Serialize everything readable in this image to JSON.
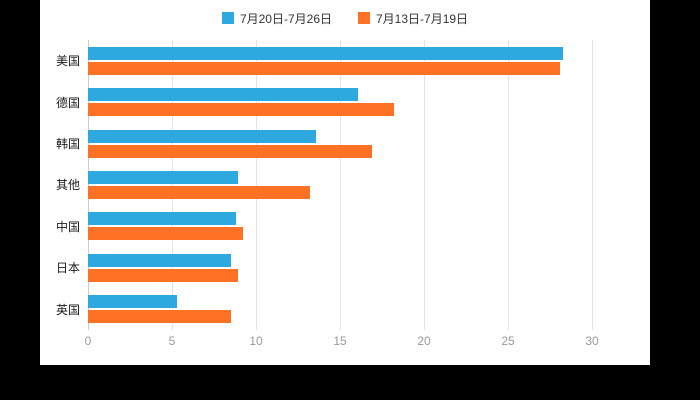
{
  "chart_data": {
    "type": "bar",
    "orientation": "horizontal",
    "title": "",
    "categories": [
      "美国",
      "德国",
      "韩国",
      "其他",
      "中国",
      "日本",
      "英国"
    ],
    "series": [
      {
        "name": "7月20日-7月26日",
        "color": "#2DA9E0",
        "values": [
          28.3,
          16.1,
          13.6,
          8.9,
          8.8,
          8.5,
          5.3
        ]
      },
      {
        "name": "7月13日-7月19日",
        "color": "#FF7124",
        "values": [
          28.1,
          18.2,
          16.9,
          13.2,
          9.2,
          8.9,
          8.5
        ]
      }
    ],
    "xlim": [
      0,
      30
    ],
    "xticks": [
      0,
      5,
      10,
      15,
      20,
      25,
      30
    ],
    "grid": true,
    "legend_position": "top",
    "plot_background": "#ffffff",
    "page_background": "#000000"
  }
}
